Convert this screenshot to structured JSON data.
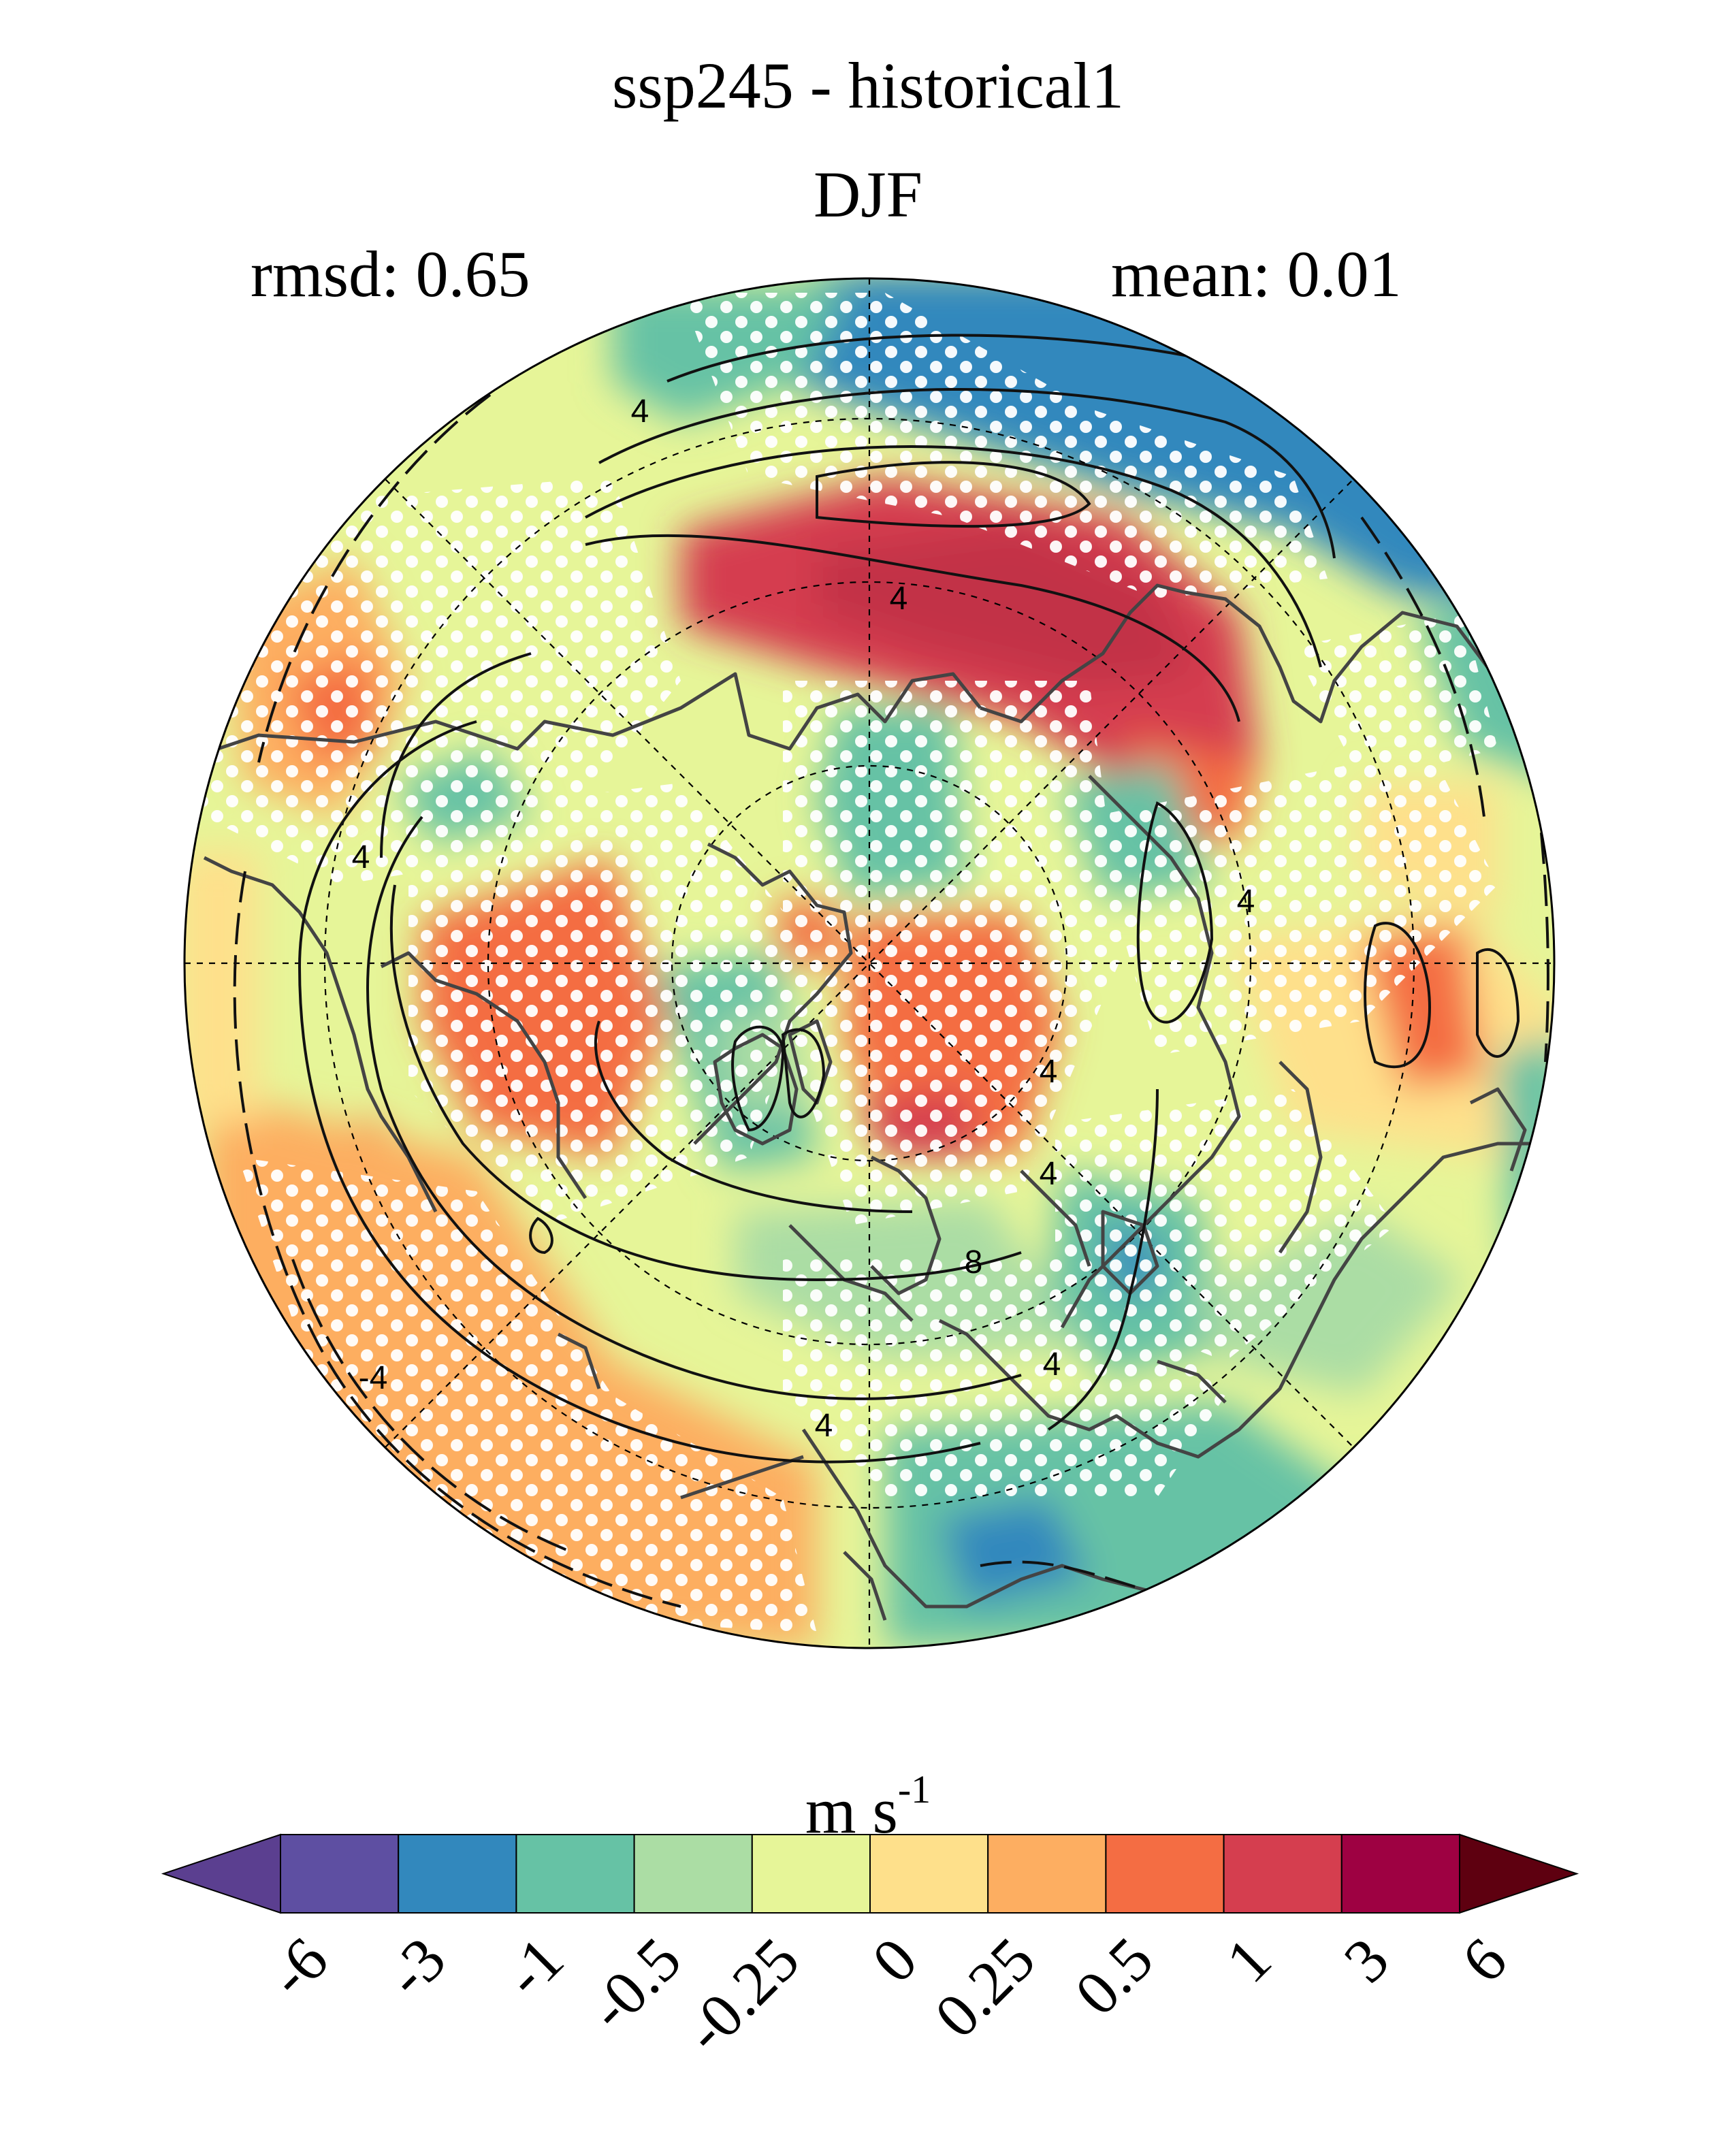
{
  "header": {
    "title": "ssp245 - historical1",
    "season": "DJF",
    "rmsd_label": "rmsd: 0.65",
    "mean_label": "mean: 0.01"
  },
  "map": {
    "projection": "north-polar-stereographic",
    "stippling": "white dots mark significant regions",
    "coastlines": "dark grey",
    "contour_labels": [
      "4",
      "4",
      "4",
      "4",
      "4",
      "4",
      "8",
      "4",
      "-4",
      "4"
    ]
  },
  "colorbar": {
    "units_main": "m s",
    "units_exp": "-1",
    "tick_labels": [
      "-6",
      "-3",
      "-1",
      "-0.5",
      "-0.25",
      "0",
      "0.25",
      "0.5",
      "1",
      "3",
      "6"
    ],
    "colors": [
      "#5b3f90",
      "#5e4fa2",
      "#3288bd",
      "#66c2a5",
      "#abdda4",
      "#e6f598",
      "#fee08b",
      "#fdae61",
      "#f46d43",
      "#d53e4f",
      "#9e0142",
      "#5e0010"
    ]
  },
  "chart_data": {
    "type": "heatmap",
    "title": "ssp245 - historical1",
    "subtitle": "DJF",
    "annotations": [
      "rmsd: 0.65",
      "mean: 0.01"
    ],
    "colorbar_levels": [
      -6,
      -3,
      -1,
      -0.5,
      -0.25,
      0,
      0.25,
      0.5,
      1,
      3,
      6
    ],
    "units": "m s-1"
  }
}
